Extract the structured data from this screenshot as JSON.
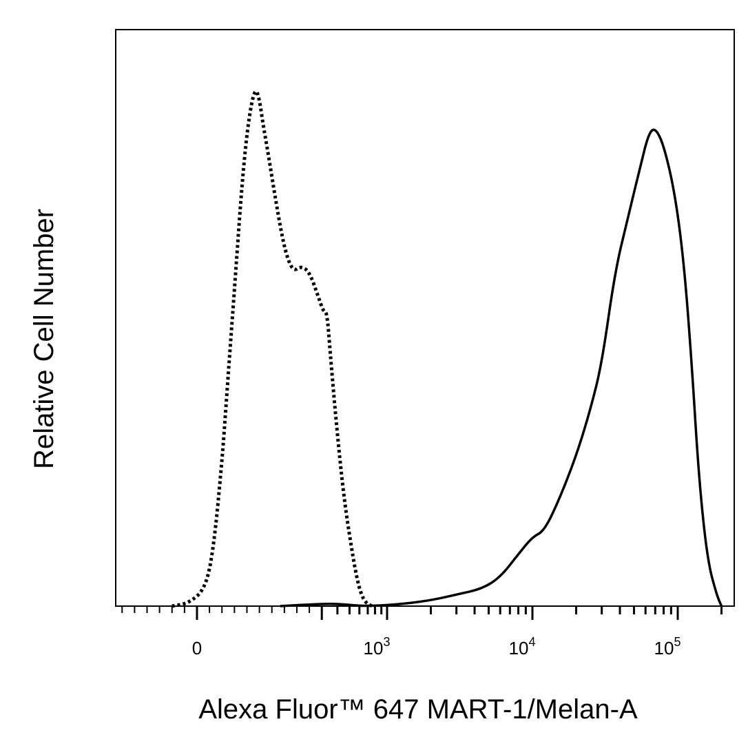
{
  "chart_data": {
    "type": "line",
    "title": "",
    "xlabel": "Alexa Fluor™ 647 MART-1/Melan-A",
    "ylabel": "Relative Cell Number",
    "xscale": "biexponential",
    "xlim": [
      -300,
      200000
    ],
    "ylim": [
      0,
      100
    ],
    "grid": false,
    "legend": "none",
    "x_tick_labels": [
      {
        "value": 0,
        "base": "0",
        "exp": ""
      },
      {
        "value": 1000,
        "base": "10",
        "exp": "3"
      },
      {
        "value": 10000,
        "base": "10",
        "exp": "4"
      },
      {
        "value": 100000,
        "base": "10",
        "exp": "5"
      }
    ],
    "series": [
      {
        "style": "dotted",
        "color": "#000000",
        "points": [
          [
            -60,
            0
          ],
          [
            -20,
            0.5
          ],
          [
            20,
            3
          ],
          [
            40,
            10
          ],
          [
            60,
            25
          ],
          [
            70,
            35
          ],
          [
            80,
            45
          ],
          [
            95,
            60
          ],
          [
            110,
            75
          ],
          [
            125,
            85
          ],
          [
            140,
            90
          ],
          [
            150,
            88
          ],
          [
            160,
            83
          ],
          [
            170,
            79
          ],
          [
            190,
            70
          ],
          [
            210,
            62
          ],
          [
            230,
            58
          ],
          [
            250,
            59
          ],
          [
            270,
            58
          ],
          [
            290,
            54
          ],
          [
            310,
            51
          ],
          [
            330,
            51
          ],
          [
            350,
            44
          ],
          [
            380,
            35
          ],
          [
            420,
            25
          ],
          [
            470,
            16
          ],
          [
            520,
            10
          ],
          [
            570,
            5
          ],
          [
            620,
            2
          ],
          [
            680,
            0.5
          ],
          [
            760,
            0
          ]
        ]
      },
      {
        "style": "solid",
        "color": "#000000",
        "points": [
          [
            200,
            0
          ],
          [
            300,
            0.4
          ],
          [
            400,
            0.4
          ],
          [
            500,
            0.2
          ],
          [
            700,
            0
          ],
          [
            1200,
            0.3
          ],
          [
            2000,
            1
          ],
          [
            3000,
            2
          ],
          [
            4500,
            3
          ],
          [
            6000,
            5
          ],
          [
            8000,
            9
          ],
          [
            10000,
            12
          ],
          [
            12000,
            13
          ],
          [
            15000,
            18
          ],
          [
            20000,
            26
          ],
          [
            25000,
            34
          ],
          [
            30000,
            42
          ],
          [
            37000,
            58
          ],
          [
            45000,
            67
          ],
          [
            55000,
            76
          ],
          [
            63000,
            82
          ],
          [
            70000,
            83
          ],
          [
            80000,
            80
          ],
          [
            95000,
            72
          ],
          [
            110000,
            60
          ],
          [
            125000,
            42
          ],
          [
            140000,
            22
          ],
          [
            160000,
            8
          ],
          [
            185000,
            2
          ],
          [
            200000,
            0
          ]
        ]
      }
    ]
  }
}
